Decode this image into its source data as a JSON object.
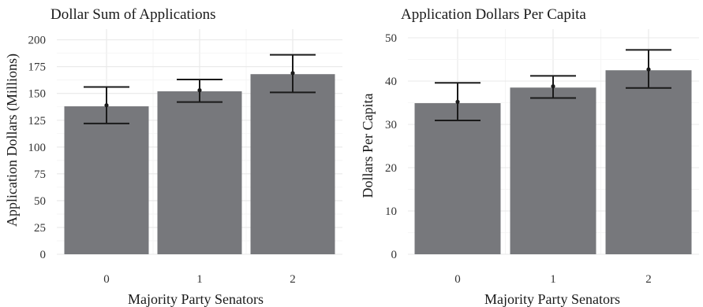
{
  "chart_data": [
    {
      "type": "bar",
      "title": "Dollar Sum of Applications",
      "xlabel": "Majority Party Senators",
      "ylabel": "Application Dollars (Millions)",
      "categories": [
        "0",
        "1",
        "2"
      ],
      "values": [
        138,
        152,
        168
      ],
      "error_low": [
        122,
        142,
        151
      ],
      "error_high": [
        156,
        163,
        186
      ],
      "points": [
        139,
        153,
        169
      ],
      "ylim": [
        0,
        210
      ],
      "yticks": [
        "0",
        "25",
        "50",
        "75",
        "100",
        "125",
        "150",
        "175",
        "200"
      ],
      "grid": true,
      "bar_color": "#77787c"
    },
    {
      "type": "bar",
      "title": "Application Dollars Per Capita",
      "xlabel": "Majority Party Senators",
      "ylabel": "Dollars Per Capita",
      "categories": [
        "0",
        "1",
        "2"
      ],
      "values": [
        34.9,
        38.5,
        42.5
      ],
      "error_low": [
        30.9,
        36.1,
        38.4
      ],
      "error_high": [
        39.6,
        41.2,
        47.2
      ],
      "points": [
        35.2,
        38.8,
        42.7
      ],
      "ylim": [
        0,
        52
      ],
      "yticks": [
        "0",
        "10",
        "20",
        "30",
        "40",
        "50"
      ],
      "grid": true,
      "bar_color": "#77787c"
    }
  ]
}
